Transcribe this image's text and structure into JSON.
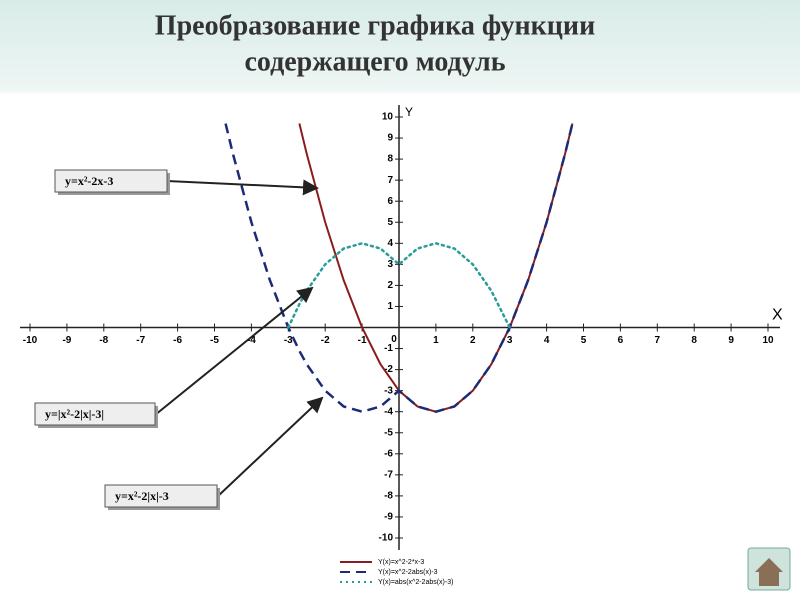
{
  "chart_data": {
    "type": "line",
    "title": [
      "Преобразование графика функции",
      "содержащего модуль"
    ],
    "x_label": "X",
    "y_label": "Y",
    "origin_label": "0",
    "x": [
      -4.7,
      -4.5,
      -4,
      -3.5,
      -3,
      -2.7,
      -2.5,
      -2,
      -1.5,
      -1,
      -0.5,
      0,
      0.5,
      1,
      1.5,
      2,
      2.5,
      3,
      3.5,
      4,
      4.5,
      4.7
    ],
    "series": [
      {
        "name": "Y(x)=x^2-2*x-3",
        "color": "#8b1c1c",
        "style": "solid",
        "values": [
          null,
          null,
          null,
          null,
          null,
          9.69,
          8.25,
          5,
          2.25,
          0,
          -1.75,
          -3,
          -3.75,
          -4,
          -3.75,
          -3,
          -1.75,
          0,
          2.25,
          5,
          8.25,
          9.69
        ]
      },
      {
        "name": "Y(x)=x^2-2abs(x)-3",
        "color": "#1c2a78",
        "style": "dashed",
        "values": [
          9.69,
          8.25,
          5,
          2.25,
          0,
          -1.11,
          -1.75,
          -3,
          -3.75,
          -4,
          -3.75,
          -3,
          -3.75,
          -4,
          -3.75,
          -3,
          -1.75,
          0,
          2.25,
          5,
          8.25,
          9.69
        ]
      },
      {
        "name": "Y(x)=abs(x^2-2abs(x)-3)",
        "color": "#2a9d9a",
        "style": "dotted",
        "values": [
          null,
          null,
          null,
          null,
          0,
          1.11,
          1.75,
          3,
          3.75,
          4,
          3.75,
          3,
          3.75,
          4,
          3.75,
          3,
          1.75,
          0,
          null,
          null,
          null,
          null
        ]
      }
    ],
    "annotations": [
      "y=x²-2x-3",
      "y=|x²-2|x|-3|",
      "y=x²-2|x|-3"
    ],
    "xlim": [
      -10,
      10
    ],
    "ylim": [
      -10,
      10
    ],
    "xticks": [
      -10,
      -9,
      -8,
      -7,
      -6,
      -5,
      -4,
      -3,
      -2,
      -1,
      1,
      2,
      3,
      4,
      5,
      6,
      7,
      8,
      9,
      10
    ],
    "yticks": [
      -10,
      -9,
      -8,
      -7,
      -6,
      -5,
      -4,
      -3,
      -2,
      -1,
      1,
      2,
      3,
      4,
      5,
      6,
      7,
      8,
      9,
      10
    ]
  }
}
